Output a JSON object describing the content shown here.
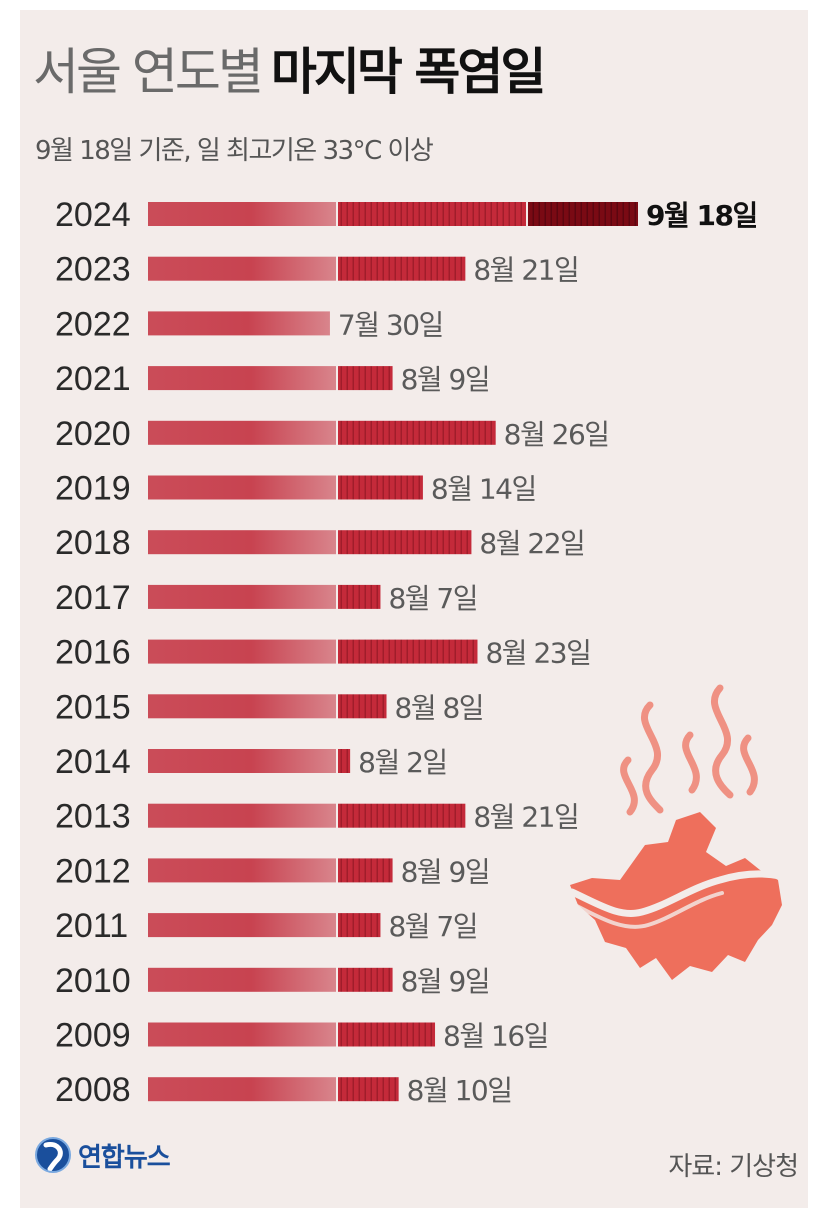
{
  "header": {
    "title_light": "서울 연도별",
    "title_bold": "마지막 폭염일",
    "subtitle": "9월 18일 기준, 일 최고기온 33°C 이상"
  },
  "footer": {
    "logo_text": "연합뉴스",
    "source": "자료: 기상청"
  },
  "colors": {
    "bar": "#c42a3a",
    "bar_highlight": "#7a0a14",
    "map": "#ee6f5c",
    "steam": "#ef8878",
    "background": "#f3ecea"
  },
  "icons": [
    "yonhap-logo-icon",
    "seoul-map-icon",
    "heat-steam-icon"
  ],
  "chart_data": {
    "type": "bar",
    "orientation": "horizontal",
    "title": "서울 연도별 마지막 폭염일",
    "subtitle": "9월 18일 기준, 일 최고기온 33°C 이상",
    "highlight": "2024",
    "categories": [
      "2024",
      "2023",
      "2022",
      "2021",
      "2020",
      "2019",
      "2018",
      "2017",
      "2016",
      "2015",
      "2014",
      "2013",
      "2012",
      "2011",
      "2010",
      "2009",
      "2008"
    ],
    "labels": [
      "9월 18일",
      "8월 21일",
      "7월 30일",
      "8월 9일",
      "8월 26일",
      "8월 14일",
      "8월 22일",
      "8월 7일",
      "8월 23일",
      "8월 8일",
      "8월 2일",
      "8월 21일",
      "8월 9일",
      "8월 7일",
      "8월 9일",
      "8월 16일",
      "8월 10일"
    ],
    "values": [
      "2024-09-18",
      "2023-08-21",
      "2022-07-30",
      "2021-08-09",
      "2020-08-26",
      "2019-08-14",
      "2018-08-22",
      "2017-08-07",
      "2016-08-23",
      "2015-08-08",
      "2014-08-02",
      "2013-08-21",
      "2012-08-09",
      "2011-08-07",
      "2010-08-09",
      "2009-08-16",
      "2008-08-10"
    ],
    "source": "자료: 기상청"
  }
}
